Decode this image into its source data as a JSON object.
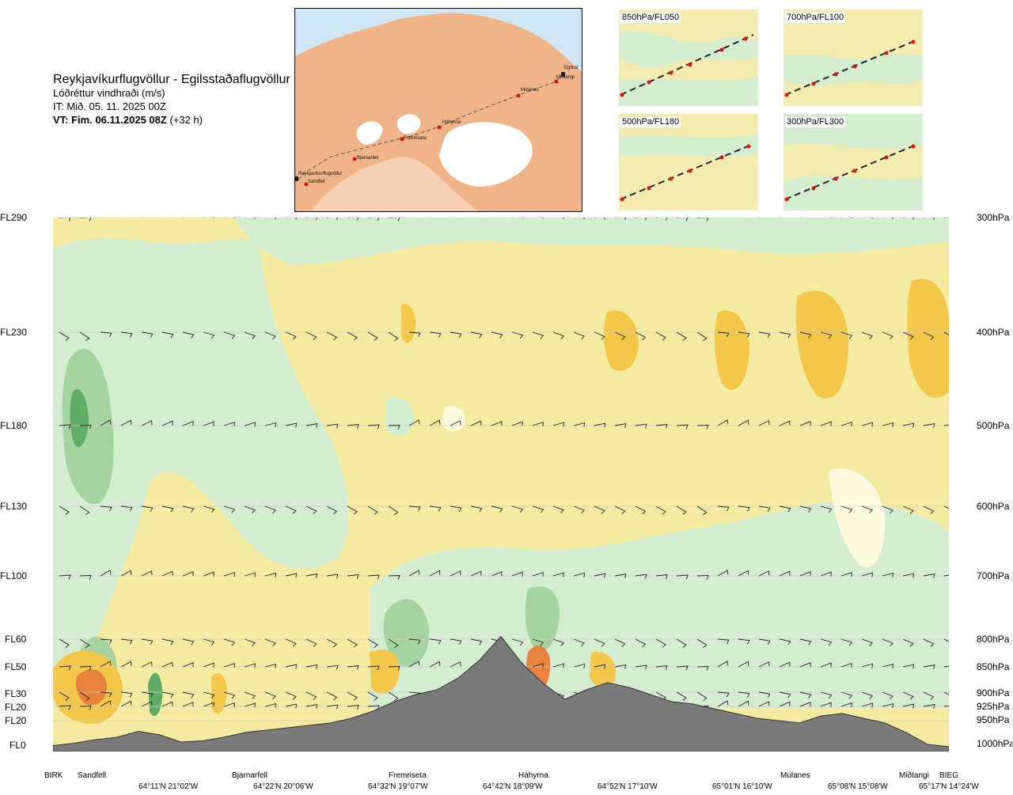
{
  "header": {
    "route": "Reykjavíkurflugvöllur - Egilsstaðaflugvöllur",
    "variable": "Lóðréttur vindhraði (m/s)",
    "issue_time": "IT: Mið. 05. 11. 2025 00Z",
    "valid_time_bold": "VT: Fim. 06.11.2025 08Z",
    "valid_offset": "(+32 h)"
  },
  "map": {
    "places": [
      "Reykjavíkurflugvöllur",
      "Sandfell",
      "Bjarnarfell",
      "Fremriseta",
      "Háhyrna",
      "Múlanes",
      "Miðtangi",
      "Egilsst"
    ]
  },
  "thumbnails": [
    {
      "label": "850hPa/FL050"
    },
    {
      "label": "700hPa/FL100"
    },
    {
      "label": "500hPa/FL180"
    },
    {
      "label": "300hPa/FL300"
    }
  ],
  "colors": {
    "strong_down": "#e8823c",
    "down": "#f3c84a",
    "weak_down": "#f5eba0",
    "neutral": "#fdfae0",
    "weak_up": "#d4ecd0",
    "up": "#a6d3a2",
    "strong_up": "#5fae63",
    "terrain": "#7a7a7a",
    "land_map": "#f0b488",
    "route": "#444444",
    "point": "#dd1111"
  },
  "chart_data": {
    "type": "heatmap",
    "title": "Lóðréttur vindhraði (m/s)",
    "flight_levels": [
      "FL290",
      "FL230",
      "FL180",
      "FL130",
      "FL100",
      "FL60",
      "FL50",
      "FL30",
      "FL20",
      "FL20",
      "FL0"
    ],
    "pressure_levels": [
      "300hPa",
      "400hPa",
      "500hPa",
      "600hPa",
      "700hPa",
      "800hPa",
      "850hPa",
      "900hPa",
      "925hPa",
      "950hPa",
      "1000hPa"
    ],
    "waypoints": [
      "BIRK",
      "Sandfell",
      "Bjarnarfell",
      "Fremriseta",
      "Háhyrna",
      "Múlanes",
      "Miðtangi",
      "BIEG"
    ],
    "coordinates": [
      "64°11'N 21°02'W",
      "64°22'N 20°06'W",
      "64°32'N 19°07'W",
      "64°42'N 18°09'W",
      "64°52'N 17°10'W",
      "65°01'N 16°10'W",
      "65°08'N 15°08'W",
      "65°17'N 14°24'W"
    ],
    "terrain_profile": [
      0.03,
      0.05,
      0.08,
      0.1,
      0.15,
      0.12,
      0.06,
      0.07,
      0.1,
      0.14,
      0.16,
      0.18,
      0.2,
      0.22,
      0.26,
      0.32,
      0.4,
      0.46,
      0.5,
      0.6,
      0.75,
      0.95,
      0.72,
      0.55,
      0.42,
      0.5,
      0.56,
      0.52,
      0.46,
      0.4,
      0.38,
      0.34,
      0.3,
      0.26,
      0.24,
      0.22,
      0.28,
      0.3,
      0.26,
      0.22,
      0.14,
      0.04,
      0.02
    ],
    "wind_barbs": true
  }
}
